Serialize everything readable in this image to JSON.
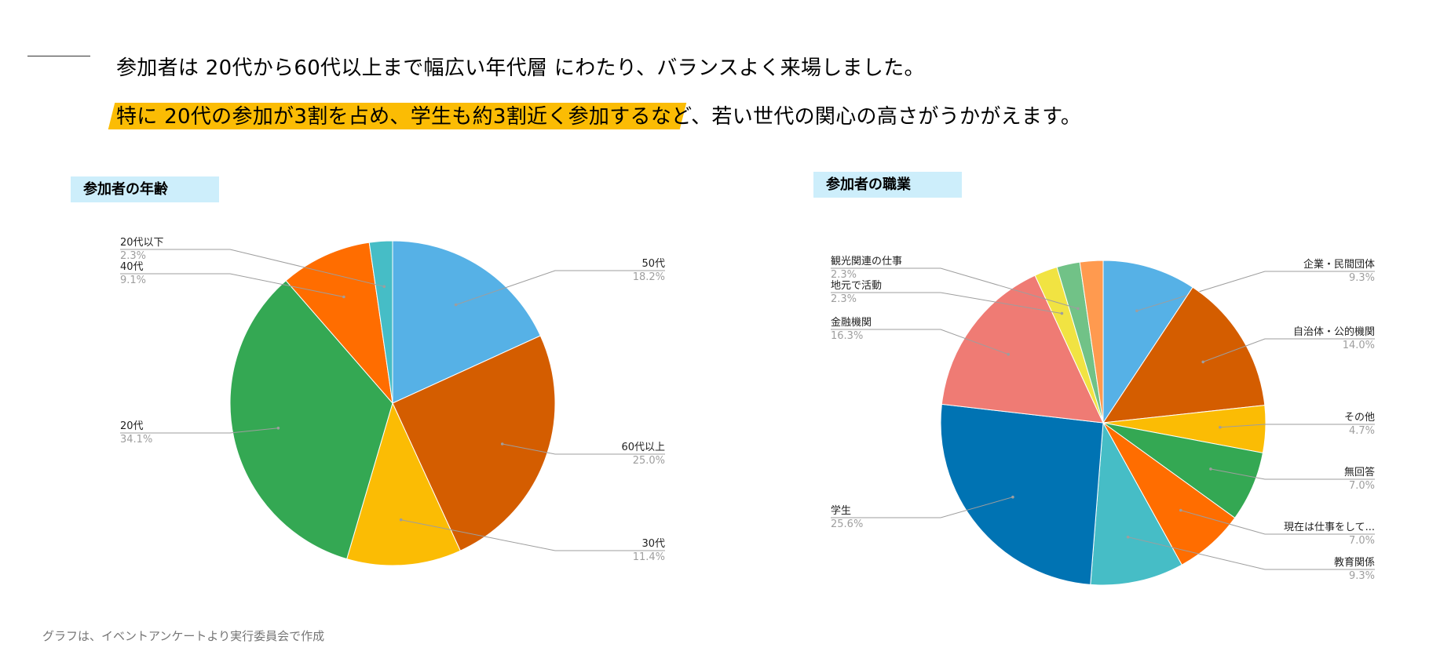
{
  "headline": {
    "line1": "参加者は 20代から60代以上まで幅広い年代層 にわたり、バランスよく来場しました。",
    "line2": "特に 20代の参加が3割を占め、学生も約3割近く参加するなど、若い世代の関心の高さがうかがえます。"
  },
  "charts": {
    "age_title": "参加者の年齢",
    "job_title": "参加者の職業"
  },
  "footnote": "グラフは、イベントアンケートより実行委員会で作成",
  "chart_data": [
    {
      "type": "pie",
      "title": "参加者の年齢",
      "start_angle_deg": 0,
      "direction": "clockwise",
      "slices": [
        {
          "label": "50代",
          "value": 18.2,
          "value_label": "18.2%",
          "color": "#56b1e6"
        },
        {
          "label": "60代以上",
          "value": 25.0,
          "value_label": "25.0%",
          "color": "#d45d00"
        },
        {
          "label": "30代",
          "value": 11.4,
          "value_label": "11.4%",
          "color": "#fbbc04"
        },
        {
          "label": "20代",
          "value": 34.1,
          "value_label": "34.1%",
          "color": "#34a853"
        },
        {
          "label": "40代",
          "value": 9.1,
          "value_label": "9.1%",
          "color": "#ff6d00"
        },
        {
          "label": "20代以下",
          "value": 2.3,
          "value_label": "2.3%",
          "color": "#46bdc6"
        }
      ]
    },
    {
      "type": "pie",
      "title": "参加者の職業",
      "start_angle_deg": 0,
      "direction": "clockwise",
      "slices": [
        {
          "label": "企業・民間団体",
          "value": 9.3,
          "value_label": "9.3%",
          "color": "#56b1e6"
        },
        {
          "label": "自治体・公的機関",
          "value": 14.0,
          "value_label": "14.0%",
          "color": "#d45d00"
        },
        {
          "label": "その他",
          "value": 4.7,
          "value_label": "4.7%",
          "color": "#fbbc04"
        },
        {
          "label": "無回答",
          "value": 7.0,
          "value_label": "7.0%",
          "color": "#34a853"
        },
        {
          "label": "現在は仕事をして...",
          "value": 7.0,
          "value_label": "7.0%",
          "color": "#ff6d00"
        },
        {
          "label": "教育関係",
          "value": 9.3,
          "value_label": "9.3%",
          "color": "#46bdc6"
        },
        {
          "label": "学生",
          "value": 25.6,
          "value_label": "25.6%",
          "color": "#0073b3"
        },
        {
          "label": "金融機関",
          "value": 16.3,
          "value_label": "16.3%",
          "color": "#ef7b74"
        },
        {
          "label": "地元で活動",
          "value": 2.3,
          "value_label": "2.3%",
          "color": "#f1e342"
        },
        {
          "label": "観光関連の仕事",
          "value": 2.3,
          "value_label": "2.3%",
          "color": "#71c287"
        },
        {
          "label": "",
          "value": 2.3,
          "value_label": "",
          "color": "#ff9a4f"
        }
      ]
    }
  ]
}
